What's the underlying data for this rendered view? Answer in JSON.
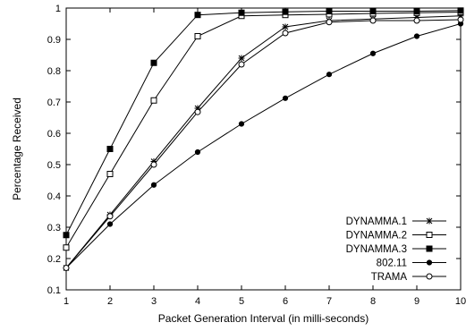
{
  "chart_data": {
    "type": "line",
    "title": "",
    "xlabel": "Packet Generation Interval (in milli-seconds)",
    "ylabel": "Percentage Received",
    "xlim": [
      1,
      10
    ],
    "ylim": [
      0.1,
      1.0
    ],
    "xticks": [
      "1",
      "2",
      "3",
      "4",
      "5",
      "6",
      "7",
      "8",
      "9",
      "10"
    ],
    "yticks": [
      "0.1",
      "0.2",
      "0.3",
      "0.4",
      "0.5",
      "0.6",
      "0.7",
      "0.8",
      "0.9",
      "1"
    ],
    "grid": false,
    "legend_position": "bottom-right",
    "x": [
      1,
      2,
      3,
      4,
      5,
      6,
      7,
      8,
      9,
      10
    ],
    "series": [
      {
        "name": "DYNAMMA.1",
        "marker": "star",
        "values": [
          0.17,
          0.34,
          0.51,
          0.68,
          0.84,
          0.94,
          0.96,
          0.965,
          0.97,
          0.975
        ]
      },
      {
        "name": "DYNAMMA.2",
        "marker": "open-square",
        "values": [
          0.235,
          0.47,
          0.705,
          0.91,
          0.975,
          0.978,
          0.98,
          0.983,
          0.985,
          0.987
        ]
      },
      {
        "name": "DYNAMMA.3",
        "marker": "filled-square",
        "values": [
          0.275,
          0.55,
          0.825,
          0.978,
          0.985,
          0.988,
          0.99,
          0.99,
          0.99,
          0.992
        ]
      },
      {
        "name": "802.11",
        "marker": "filled-circle",
        "values": [
          0.17,
          0.31,
          0.435,
          0.54,
          0.63,
          0.712,
          0.788,
          0.855,
          0.91,
          0.95
        ]
      },
      {
        "name": "TRAMA",
        "marker": "open-circle",
        "values": [
          0.17,
          0.335,
          0.5,
          0.668,
          0.82,
          0.92,
          0.955,
          0.96,
          0.96,
          0.963
        ]
      }
    ]
  }
}
